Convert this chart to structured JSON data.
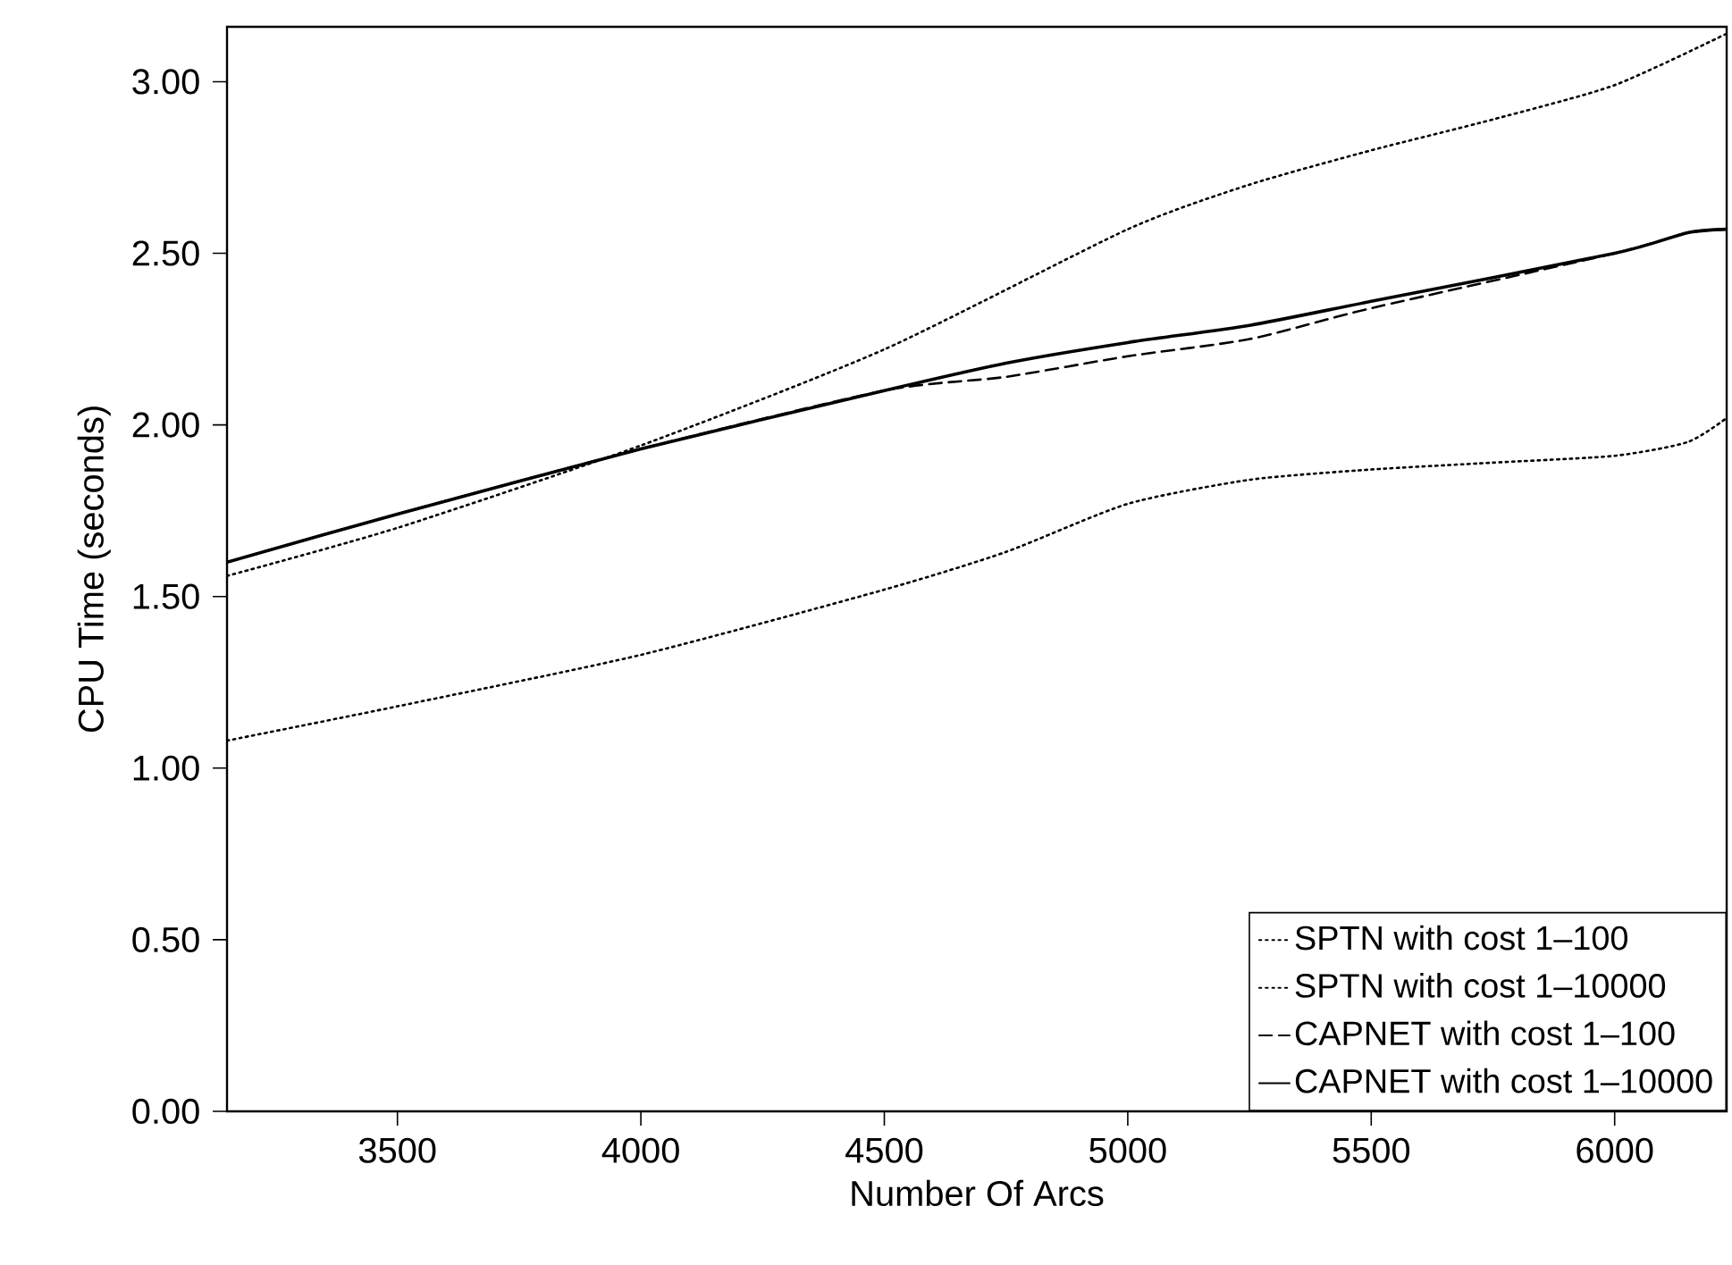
{
  "chart_data": {
    "type": "line",
    "xlabel": "Number Of Arcs",
    "ylabel": "CPU Time (seconds)",
    "xlim": [
      3150,
      6230
    ],
    "ylim": [
      0,
      3.16
    ],
    "xticks": [
      3500,
      4000,
      4500,
      5000,
      5500,
      6000
    ],
    "yticks": [
      {
        "value": 0,
        "label": "0.00"
      },
      {
        "value": 0.5,
        "label": "0.50"
      },
      {
        "value": 1,
        "label": "1.00"
      },
      {
        "value": 1.5,
        "label": "1.50"
      },
      {
        "value": 2,
        "label": "2.00"
      },
      {
        "value": 2.5,
        "label": "2.50"
      },
      {
        "value": 3,
        "label": "3.00"
      }
    ],
    "grid": false,
    "legend": "bottom right",
    "marker": "none",
    "series": [
      {
        "name": "SPTN with cost 1–100",
        "color": "#000000",
        "line_style": "dotted",
        "x": [
          3150,
          3500,
          4000,
          4500,
          4750,
          5000,
          5250,
          5500,
          5750,
          6000,
          6150,
          6230
        ],
        "values": [
          1.08,
          1.18,
          1.33,
          1.52,
          1.63,
          1.77,
          1.84,
          1.87,
          1.89,
          1.91,
          1.95,
          2.02
        ]
      },
      {
        "name": "SPTN with cost 1–10000",
        "color": "#000000",
        "line_style": "dotted",
        "x": [
          3150,
          3500,
          4000,
          4500,
          5000,
          5250,
          5500,
          5750,
          6000,
          6230
        ],
        "values": [
          1.56,
          1.7,
          1.94,
          2.22,
          2.57,
          2.7,
          2.8,
          2.89,
          2.99,
          3.14
        ]
      },
      {
        "name": "CAPNET with cost 1–100",
        "color": "#000000",
        "line_style": "dashed",
        "x": [
          3150,
          3500,
          4000,
          4500,
          4750,
          5000,
          5250,
          5500,
          6000,
          6150,
          6230
        ],
        "values": [
          1.6,
          1.74,
          1.93,
          2.1,
          2.14,
          2.2,
          2.25,
          2.34,
          2.5,
          2.56,
          2.57
        ]
      },
      {
        "name": "CAPNET with cost 1–10000",
        "color": "#000000",
        "line_style": "solid",
        "x": [
          3150,
          3500,
          4000,
          4500,
          4750,
          5000,
          5250,
          5500,
          6000,
          6150,
          6230
        ],
        "values": [
          1.6,
          1.74,
          1.93,
          2.1,
          2.18,
          2.24,
          2.29,
          2.36,
          2.5,
          2.56,
          2.57
        ]
      }
    ]
  }
}
